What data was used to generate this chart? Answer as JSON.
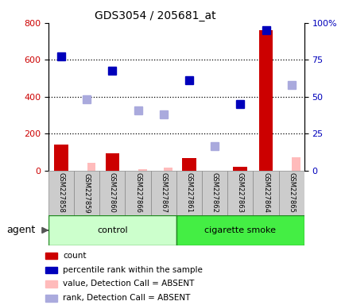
{
  "title": "GDS3054 / 205681_at",
  "samples": [
    "GSM227858",
    "GSM227859",
    "GSM227860",
    "GSM227866",
    "GSM227867",
    "GSM227861",
    "GSM227862",
    "GSM227863",
    "GSM227864",
    "GSM227865"
  ],
  "groups": [
    "control",
    "control",
    "control",
    "control",
    "control",
    "cigarette smoke",
    "cigarette smoke",
    "cigarette smoke",
    "cigarette smoke",
    "cigarette smoke"
  ],
  "count_present": [
    140,
    0,
    95,
    0,
    0,
    70,
    0,
    20,
    760,
    0
  ],
  "count_absent": [
    0,
    45,
    0,
    8,
    18,
    0,
    0,
    0,
    0,
    75
  ],
  "rank_present": [
    620,
    0,
    540,
    0,
    0,
    490,
    0,
    360,
    762,
    0
  ],
  "rank_absent": [
    0,
    385,
    0,
    325,
    305,
    0,
    135,
    0,
    0,
    462
  ],
  "count_color": "#cc0000",
  "rank_color": "#0000bb",
  "count_absent_color": "#ffbbbb",
  "rank_absent_color": "#aaaadd",
  "ylim_left": [
    0,
    800
  ],
  "ylim_right": [
    0,
    100
  ],
  "yticks_left": [
    0,
    200,
    400,
    600,
    800
  ],
  "yticks_right": [
    0,
    25,
    50,
    75,
    100
  ],
  "ytick_labels_right": [
    "0",
    "25",
    "50",
    "75",
    "100%"
  ],
  "bar_width": 0.55,
  "marker_size": 7,
  "bg_color": "#cccccc",
  "control_color": "#ccffcc",
  "smoke_color": "#44ee44",
  "fig_width": 4.35,
  "fig_height": 3.84
}
